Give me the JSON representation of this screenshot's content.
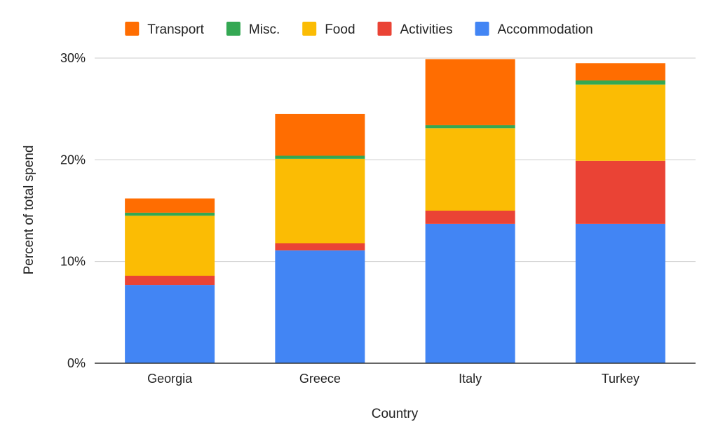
{
  "chart_data": {
    "type": "bar",
    "stacked": true,
    "title": "",
    "xlabel": "Country",
    "ylabel": "Percent of total spend",
    "categories": [
      "Georgia",
      "Greece",
      "Italy",
      "Turkey"
    ],
    "ylim": [
      0,
      30
    ],
    "yticks": [
      0,
      10,
      20,
      30
    ],
    "ytick_labels": [
      "0%",
      "10%",
      "20%",
      "30%"
    ],
    "grid": true,
    "legend_position": "top",
    "legend_order": [
      "Transport",
      "Misc.",
      "Food",
      "Activities",
      "Accommodation"
    ],
    "series": [
      {
        "name": "Accommodation",
        "color": "#4285f4",
        "values": [
          7.7,
          11.1,
          13.7,
          13.7
        ]
      },
      {
        "name": "Activities",
        "color": "#ea4335",
        "values": [
          0.9,
          0.7,
          1.3,
          6.2
        ]
      },
      {
        "name": "Food",
        "color": "#fbbc04",
        "values": [
          5.9,
          8.3,
          8.1,
          7.5
        ]
      },
      {
        "name": "Misc.",
        "color": "#34a853",
        "values": [
          0.3,
          0.3,
          0.3,
          0.4
        ]
      },
      {
        "name": "Transport",
        "color": "#ff6d01",
        "values": [
          1.4,
          4.1,
          6.5,
          1.7
        ]
      }
    ]
  }
}
